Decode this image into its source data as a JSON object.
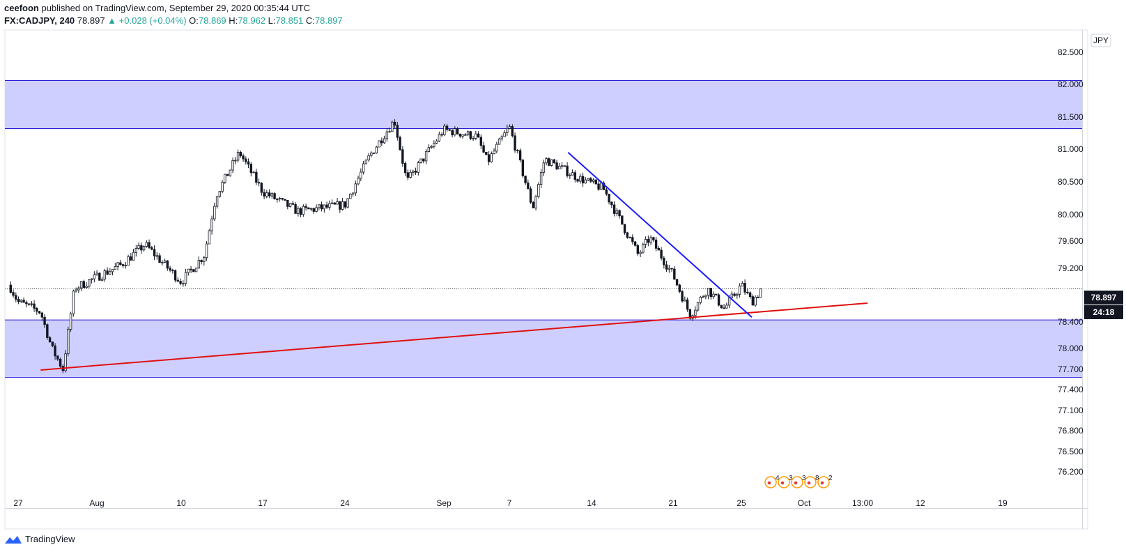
{
  "header": {
    "author": "ceefoon",
    "published_text": "published on TradingView.com, September 29, 2020 00:35:44 UTC",
    "symbol": "FX:CADJPY, 240",
    "last": "78.897",
    "change": "+0.028 (+0.04%)",
    "o_label": "O:",
    "o_value": "78.869",
    "h_label": "H:",
    "h_value": "78.962",
    "l_label": "L:",
    "l_value": "78.851",
    "c_label": "C:",
    "c_value": "78.897"
  },
  "footer": {
    "brand": "TradingView",
    "logo_icon": "tradingview-logo-icon"
  },
  "colors": {
    "zone_fill": "#ccccff",
    "zone_border": "#2b1fd6",
    "trend_red": "#e01010",
    "trend_blue": "#1a1aff",
    "candle": "#131722",
    "price_label_bg": "#131722"
  },
  "chart_data": {
    "type": "candlestick",
    "symbol": "FX:CADJPY",
    "interval": "240",
    "currency_label": "JPY",
    "y_ticks": [
      "82.500",
      "82.000",
      "81.500",
      "81.000",
      "80.500",
      "80.000",
      "79.600",
      "79.200",
      "78.400",
      "78.000",
      "77.700",
      "77.400",
      "77.100",
      "76.800",
      "76.500",
      "76.200"
    ],
    "x_ticks": [
      "27",
      "Aug",
      "10",
      "17",
      "24",
      "Sep",
      "7",
      "14",
      "21",
      "25",
      "Oct",
      "13:00",
      "12",
      "19"
    ],
    "last_price_label": "78.897",
    "countdown_label": "24:18",
    "zones": [
      {
        "from": 81.32,
        "to": 82.06
      },
      {
        "from": 77.58,
        "to": 78.43
      }
    ],
    "trendlines": [
      {
        "color": "red",
        "from": {
          "x": "2020-07-29",
          "y": 77.69
        },
        "to": {
          "x": "2020-10-07",
          "y": 78.68
        }
      },
      {
        "color": "blue",
        "from": {
          "x": "2020-09-12",
          "y": 80.95
        },
        "to": {
          "x": "2020-09-26",
          "y": 78.47
        }
      }
    ],
    "price_path": [
      {
        "x": "2020-07-25",
        "y": 78.95
      },
      {
        "x": "2020-07-27",
        "y": 78.7
      },
      {
        "x": "2020-07-29",
        "y": 78.55
      },
      {
        "x": "2020-07-30",
        "y": 78.0
      },
      {
        "x": "2020-07-31",
        "y": 77.7
      },
      {
        "x": "2020-08-01",
        "y": 78.9
      },
      {
        "x": "2020-08-05",
        "y": 79.25
      },
      {
        "x": "2020-08-07",
        "y": 79.55
      },
      {
        "x": "2020-08-10",
        "y": 79.0
      },
      {
        "x": "2020-08-12",
        "y": 79.4
      },
      {
        "x": "2020-08-13",
        "y": 80.3
      },
      {
        "x": "2020-08-15",
        "y": 80.95
      },
      {
        "x": "2020-08-17",
        "y": 80.35
      },
      {
        "x": "2020-08-20",
        "y": 80.05
      },
      {
        "x": "2020-08-24",
        "y": 80.15
      },
      {
        "x": "2020-08-26",
        "y": 80.9
      },
      {
        "x": "2020-08-28",
        "y": 81.45
      },
      {
        "x": "2020-08-29",
        "y": 80.5
      },
      {
        "x": "2020-09-01",
        "y": 81.3
      },
      {
        "x": "2020-09-04",
        "y": 81.2
      },
      {
        "x": "2020-09-05",
        "y": 80.8
      },
      {
        "x": "2020-09-07",
        "y": 81.35
      },
      {
        "x": "2020-09-09",
        "y": 80.1
      },
      {
        "x": "2020-09-10",
        "y": 80.85
      },
      {
        "x": "2020-09-13",
        "y": 80.55
      },
      {
        "x": "2020-09-15",
        "y": 80.4
      },
      {
        "x": "2020-09-18",
        "y": 79.4
      },
      {
        "x": "2020-09-19",
        "y": 79.65
      },
      {
        "x": "2020-09-21",
        "y": 79.1
      },
      {
        "x": "2020-09-22",
        "y": 78.5
      },
      {
        "x": "2020-09-23",
        "y": 78.9
      },
      {
        "x": "2020-09-24",
        "y": 78.6
      },
      {
        "x": "2020-09-25",
        "y": 78.95
      },
      {
        "x": "2020-09-26",
        "y": 78.7
      },
      {
        "x": "2020-09-27",
        "y": 78.9
      }
    ],
    "event_markers": [
      "4",
      "3",
      "3",
      "8",
      "2"
    ]
  }
}
